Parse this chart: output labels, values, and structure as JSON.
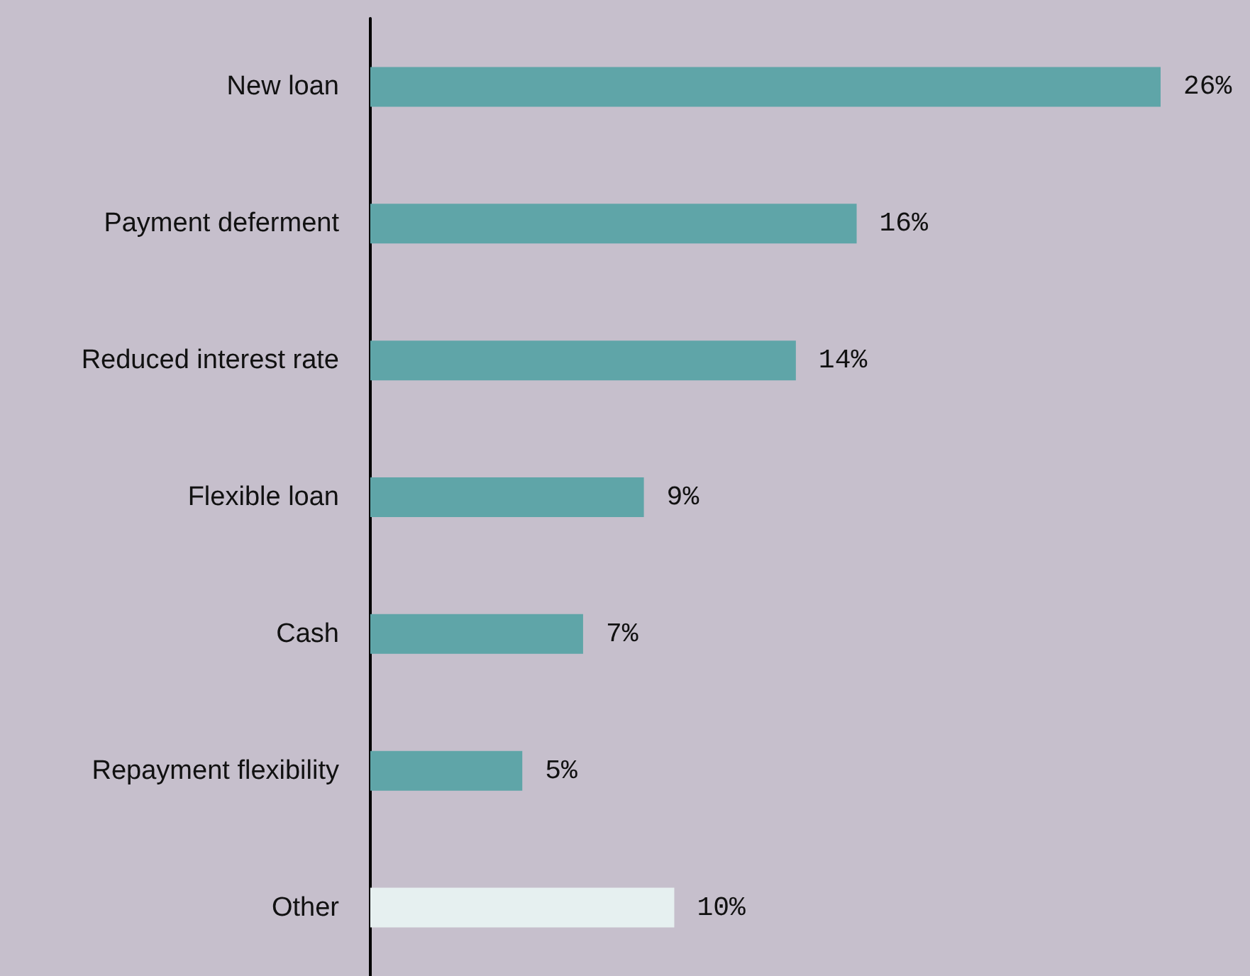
{
  "chart_data": {
    "type": "bar",
    "orientation": "horizontal",
    "categories": [
      "New loan",
      "Payment deferment",
      "Reduced interest rate",
      "Flexible loan",
      "Cash",
      "Repayment flexibility",
      "Other"
    ],
    "values": [
      26,
      16,
      14,
      9,
      7,
      5,
      10
    ],
    "colors": [
      "#5fa5a8",
      "#5fa5a8",
      "#5fa5a8",
      "#5fa5a8",
      "#5fa5a8",
      "#5fa5a8",
      "#e6f0f0"
    ],
    "data_labels": true,
    "value_labels": [
      "26%",
      "16%",
      "14%",
      "9%",
      "7%",
      "5%",
      "10%"
    ]
  }
}
